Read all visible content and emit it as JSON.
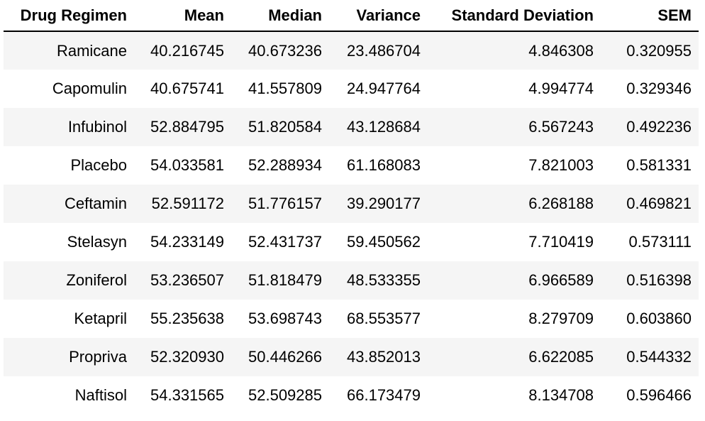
{
  "chart_data": {
    "type": "table",
    "columns": [
      "Drug Regimen",
      "Mean",
      "Median",
      "Variance",
      "Standard Deviation",
      "SEM"
    ],
    "rows": [
      [
        "Ramicane",
        "40.216745",
        "40.673236",
        "23.486704",
        "4.846308",
        "0.320955"
      ],
      [
        "Capomulin",
        "40.675741",
        "41.557809",
        "24.947764",
        "4.994774",
        "0.329346"
      ],
      [
        "Infubinol",
        "52.884795",
        "51.820584",
        "43.128684",
        "6.567243",
        "0.492236"
      ],
      [
        "Placebo",
        "54.033581",
        "52.288934",
        "61.168083",
        "7.821003",
        "0.581331"
      ],
      [
        "Ceftamin",
        "52.591172",
        "51.776157",
        "39.290177",
        "6.268188",
        "0.469821"
      ],
      [
        "Stelasyn",
        "54.233149",
        "52.431737",
        "59.450562",
        "7.710419",
        "0.573111"
      ],
      [
        "Zoniferol",
        "53.236507",
        "51.818479",
        "48.533355",
        "6.966589",
        "0.516398"
      ],
      [
        "Ketapril",
        "55.235638",
        "53.698743",
        "68.553577",
        "8.279709",
        "0.603860"
      ],
      [
        "Propriva",
        "52.320930",
        "50.446266",
        "43.852013",
        "6.622085",
        "0.544332"
      ],
      [
        "Naftisol",
        "54.331565",
        "52.509285",
        "66.173479",
        "8.134708",
        "0.596466"
      ]
    ],
    "colors": {
      "stripe": "#f5f5f5",
      "background": "#ffffff",
      "text": "#000000",
      "header_rule": "#000000"
    }
  }
}
